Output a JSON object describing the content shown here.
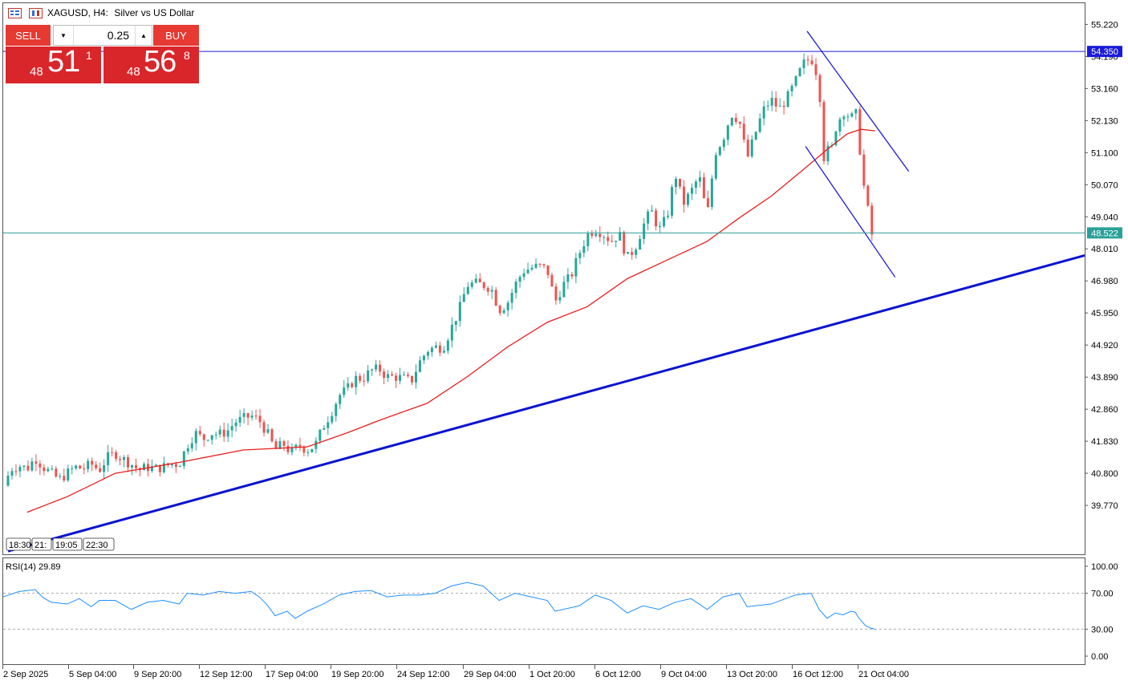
{
  "header": {
    "symbol": "XAGUSD, H4:",
    "description": "Silver vs US Dollar"
  },
  "trade_panel": {
    "sell_label": "SELL",
    "buy_label": "BUY",
    "lot": "0.25",
    "sell_price": {
      "prefix": "48",
      "big": "51",
      "sup": "1"
    },
    "buy_price": {
      "prefix": "48",
      "big": "56",
      "sup": "8"
    }
  },
  "time_labels": [
    "18:30",
    "21:",
    "19:05",
    "22:30"
  ],
  "colors": {
    "bull": "#26a69a",
    "bear": "#ef5350",
    "ma": "#e81e1e",
    "trend": "#0a14d0",
    "rsi": "#1e90ff",
    "level": "#1a1adb",
    "bid": "#2aa198"
  },
  "chart_data": {
    "type": "candlestick",
    "symbol": "XAGUSD",
    "timeframe": "H4",
    "y_ticks": [
      "55.220",
      "54.190",
      "53.160",
      "52.130",
      "51.100",
      "50.070",
      "49.040",
      "48.010",
      "46.980",
      "45.950",
      "44.920",
      "43.890",
      "42.860",
      "41.830",
      "40.800",
      "39.770"
    ],
    "ylim": [
      38.2,
      55.9
    ],
    "x_labels": [
      "2 Sep 2025",
      "5 Sep 04:00",
      "9 Sep 20:00",
      "12 Sep 12:00",
      "17 Sep 04:00",
      "19 Sep 20:00",
      "24 Sep 12:00",
      "29 Sep 04:00",
      "1 Oct 20:00",
      "6 Oct 12:00",
      "9 Oct 04:00",
      "13 Oct 20:00",
      "16 Oct 12:00",
      "21 Oct 04:00"
    ],
    "level_price": "54.350",
    "bid_price": "48.522",
    "close_points": [
      [
        0,
        40.4
      ],
      [
        10,
        40.95
      ],
      [
        20,
        41.05
      ],
      [
        30,
        40.95
      ],
      [
        40,
        41.3
      ],
      [
        50,
        41.0
      ],
      [
        60,
        40.8
      ],
      [
        70,
        40.6
      ],
      [
        80,
        40.8
      ],
      [
        90,
        41.0
      ],
      [
        100,
        40.95
      ],
      [
        110,
        41.1
      ],
      [
        120,
        40.9
      ],
      [
        130,
        41.3
      ],
      [
        140,
        41.45
      ],
      [
        150,
        41.25
      ],
      [
        160,
        41.1
      ],
      [
        170,
        40.9
      ],
      [
        180,
        41.0
      ],
      [
        190,
        40.95
      ],
      [
        200,
        41.0
      ],
      [
        210,
        41.1
      ],
      [
        220,
        41.1
      ],
      [
        230,
        41.7
      ],
      [
        240,
        42.1
      ],
      [
        250,
        41.9
      ],
      [
        260,
        42.1
      ],
      [
        270,
        42.05
      ],
      [
        280,
        42.15
      ],
      [
        290,
        42.45
      ],
      [
        300,
        42.55
      ],
      [
        310,
        42.65
      ],
      [
        320,
        42.5
      ],
      [
        330,
        42.1
      ],
      [
        340,
        41.55
      ],
      [
        350,
        41.75
      ],
      [
        360,
        41.45
      ],
      [
        370,
        41.7
      ],
      [
        380,
        41.55
      ],
      [
        390,
        41.7
      ],
      [
        400,
        42.3
      ],
      [
        410,
        42.75
      ],
      [
        420,
        43.3
      ],
      [
        430,
        43.5
      ],
      [
        440,
        43.85
      ],
      [
        450,
        43.85
      ],
      [
        460,
        44.1
      ],
      [
        470,
        44.15
      ],
      [
        480,
        43.9
      ],
      [
        490,
        43.9
      ],
      [
        500,
        43.85
      ],
      [
        510,
        43.75
      ],
      [
        520,
        44.35
      ],
      [
        530,
        44.75
      ],
      [
        540,
        44.85
      ],
      [
        550,
        44.85
      ],
      [
        560,
        45.45
      ],
      [
        570,
        46.05
      ],
      [
        580,
        46.85
      ],
      [
        590,
        46.9
      ],
      [
        600,
        46.85
      ],
      [
        610,
        46.75
      ],
      [
        620,
        46.05
      ],
      [
        630,
        46.25
      ],
      [
        640,
        46.85
      ],
      [
        650,
        47.3
      ],
      [
        660,
        47.4
      ],
      [
        670,
        47.45
      ],
      [
        680,
        47.35
      ],
      [
        690,
        46.3
      ],
      [
        700,
        46.85
      ],
      [
        710,
        47.15
      ],
      [
        720,
        47.85
      ],
      [
        730,
        48.45
      ],
      [
        740,
        48.65
      ],
      [
        750,
        48.5
      ],
      [
        760,
        48.25
      ],
      [
        770,
        48.5
      ],
      [
        780,
        47.7
      ],
      [
        790,
        48.05
      ],
      [
        800,
        48.75
      ],
      [
        810,
        49.25
      ],
      [
        820,
        48.6
      ],
      [
        830,
        49.05
      ],
      [
        840,
        50.45
      ],
      [
        850,
        49.45
      ],
      [
        860,
        49.85
      ],
      [
        870,
        50.35
      ],
      [
        880,
        49.05
      ],
      [
        890,
        51.1
      ],
      [
        900,
        51.55
      ],
      [
        910,
        52.35
      ],
      [
        920,
        52.15
      ],
      [
        930,
        50.9
      ],
      [
        940,
        51.7
      ],
      [
        950,
        52.45
      ],
      [
        960,
        52.8
      ],
      [
        970,
        52.5
      ],
      [
        980,
        52.85
      ],
      [
        990,
        53.35
      ],
      [
        1000,
        53.95
      ],
      [
        1010,
        54.15
      ],
      [
        1015,
        53.8
      ],
      [
        1020,
        53.4
      ],
      [
        1025,
        50.9
      ],
      [
        1030,
        51.2
      ],
      [
        1035,
        51.1
      ],
      [
        1040,
        51.85
      ],
      [
        1045,
        52.15
      ],
      [
        1050,
        52.45
      ],
      [
        1055,
        52.35
      ],
      [
        1060,
        52.15
      ],
      [
        1065,
        52.55
      ],
      [
        1070,
        51.45
      ],
      [
        1075,
        50.15
      ],
      [
        1080,
        49.45
      ],
      [
        1085,
        48.45
      ],
      [
        1090,
        48.52
      ]
    ],
    "ma_points": [
      [
        30,
        39.55
      ],
      [
        80,
        40.05
      ],
      [
        140,
        40.8
      ],
      [
        220,
        41.15
      ],
      [
        300,
        41.55
      ],
      [
        380,
        41.65
      ],
      [
        430,
        42.1
      ],
      [
        470,
        42.5
      ],
      [
        530,
        43.05
      ],
      [
        580,
        43.9
      ],
      [
        630,
        44.85
      ],
      [
        680,
        45.65
      ],
      [
        730,
        46.15
      ],
      [
        780,
        47.05
      ],
      [
        830,
        47.65
      ],
      [
        880,
        48.25
      ],
      [
        920,
        49.0
      ],
      [
        960,
        49.7
      ],
      [
        1000,
        50.55
      ],
      [
        1030,
        51.2
      ],
      [
        1055,
        51.7
      ],
      [
        1072,
        51.85
      ],
      [
        1090,
        51.8
      ]
    ],
    "channel_upper": [
      [
        1005,
        55.0
      ],
      [
        1132,
        50.5
      ]
    ],
    "channel_lower": [
      [
        1003,
        51.3
      ],
      [
        1115,
        47.1
      ]
    ],
    "trendline": [
      [
        6,
        38.3
      ],
      [
        1352,
        47.8
      ]
    ],
    "rsi": {
      "label": "RSI(14) 29.89",
      "value": "29.89",
      "period": 14,
      "levels": [
        "70.00",
        "30.00"
      ],
      "y_ticks": [
        "100.00",
        "70.00",
        "30.00",
        "0.00"
      ],
      "ylim": [
        0,
        100
      ],
      "points": [
        [
          0,
          66
        ],
        [
          20,
          72
        ],
        [
          40,
          74
        ],
        [
          50,
          65
        ],
        [
          60,
          60
        ],
        [
          80,
          58
        ],
        [
          95,
          64
        ],
        [
          110,
          55
        ],
        [
          120,
          62
        ],
        [
          140,
          62
        ],
        [
          160,
          52
        ],
        [
          180,
          60
        ],
        [
          200,
          62
        ],
        [
          220,
          58
        ],
        [
          230,
          70
        ],
        [
          250,
          68
        ],
        [
          270,
          72
        ],
        [
          290,
          70
        ],
        [
          310,
          72
        ],
        [
          320,
          66
        ],
        [
          330,
          57
        ],
        [
          340,
          45
        ],
        [
          355,
          50
        ],
        [
          365,
          42
        ],
        [
          380,
          50
        ],
        [
          400,
          58
        ],
        [
          420,
          68
        ],
        [
          440,
          72
        ],
        [
          460,
          73
        ],
        [
          480,
          66
        ],
        [
          500,
          68
        ],
        [
          520,
          68
        ],
        [
          540,
          70
        ],
        [
          560,
          78
        ],
        [
          580,
          82
        ],
        [
          600,
          78
        ],
        [
          620,
          62
        ],
        [
          640,
          70
        ],
        [
          660,
          66
        ],
        [
          680,
          62
        ],
        [
          690,
          50
        ],
        [
          720,
          56
        ],
        [
          740,
          68
        ],
        [
          760,
          62
        ],
        [
          780,
          48
        ],
        [
          800,
          56
        ],
        [
          820,
          52
        ],
        [
          840,
          60
        ],
        [
          860,
          64
        ],
        [
          880,
          52
        ],
        [
          900,
          66
        ],
        [
          920,
          70
        ],
        [
          930,
          55
        ],
        [
          960,
          58
        ],
        [
          990,
          68
        ],
        [
          1010,
          70
        ],
        [
          1020,
          52
        ],
        [
          1030,
          42
        ],
        [
          1040,
          48
        ],
        [
          1050,
          46
        ],
        [
          1060,
          50
        ],
        [
          1065,
          49
        ],
        [
          1070,
          42
        ],
        [
          1078,
          34
        ],
        [
          1085,
          31
        ],
        [
          1090,
          29.89
        ]
      ]
    }
  }
}
